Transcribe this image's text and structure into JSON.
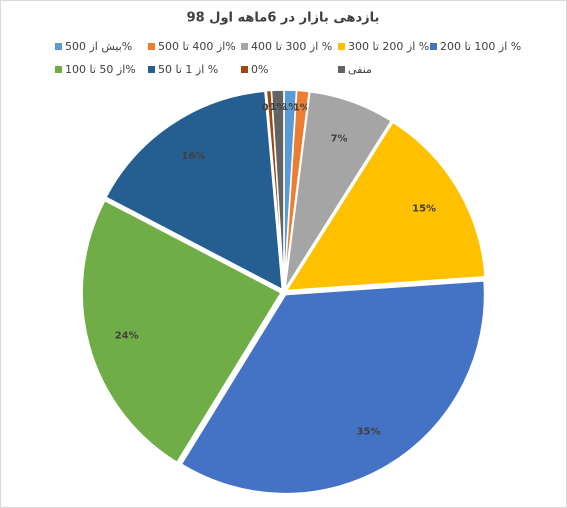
{
  "chart_data": {
    "type": "pie",
    "title": "بازدهی بازار در 6ماهه اول 98",
    "categories": [
      "بیش از 500%",
      "از 400 تا 500%",
      "از 300 تا 400 %",
      "از 200 تا 300 %",
      "از 100 تا 200 %",
      "از 50 تا 100%",
      "از 1 تا 50 %",
      "0%",
      "منفی"
    ],
    "values": [
      1,
      1,
      7,
      15,
      35,
      24,
      16,
      0.4,
      1
    ],
    "value_labels": [
      "1%",
      "1%",
      "7%",
      "15%",
      "35%",
      "24%",
      "16%",
      "0%",
      "1%"
    ],
    "colors": [
      "#5b9bd5",
      "#ed7d31",
      "#a5a5a5",
      "#ffc000",
      "#4472c4",
      "#70ad47",
      "#255e91",
      "#9e480e",
      "#636363"
    ]
  }
}
